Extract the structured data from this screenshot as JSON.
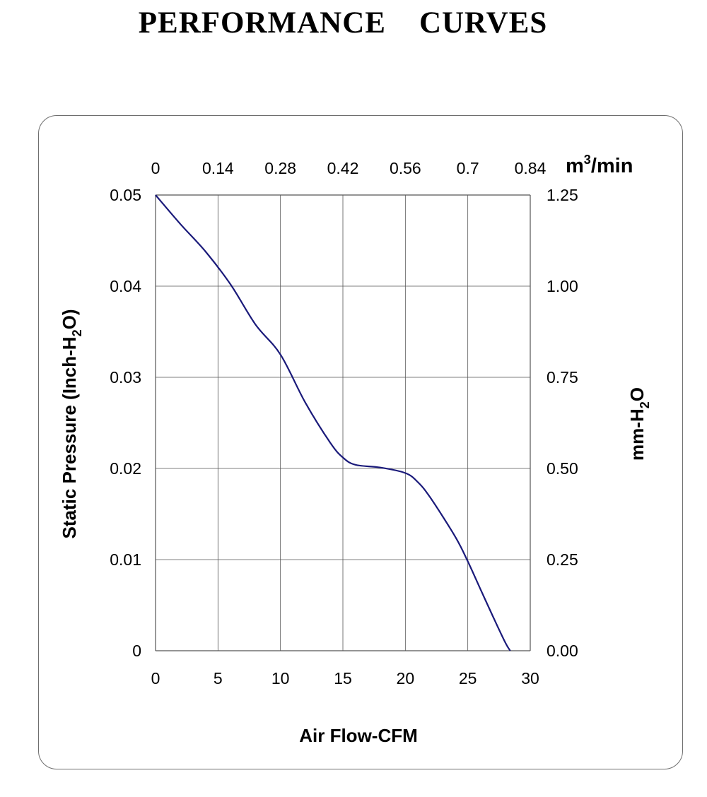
{
  "page": {
    "title": "PERFORMANCE    CURVES"
  },
  "chart_data": {
    "type": "line",
    "x_axis": {
      "label": "Air Flow-CFM",
      "range": [
        0,
        30
      ],
      "ticks": [
        "0",
        "5",
        "10",
        "15",
        "20",
        "25",
        "30"
      ]
    },
    "x_axis_top": {
      "unit_base": "m",
      "unit_sup": "3",
      "unit_rest": "/min",
      "ticks": [
        "0",
        "0.14",
        "0.28",
        "0.42",
        "0.56",
        "0.7",
        "0.84"
      ]
    },
    "y_axis": {
      "label_main": "Static Pressure (Inch-H",
      "label_sub": "2",
      "label_end": "O)",
      "range": [
        0,
        0.05
      ],
      "ticks": [
        "0",
        "0.01",
        "0.02",
        "0.03",
        "0.04",
        "0.05"
      ]
    },
    "y_axis_right": {
      "label_main": "mm-H",
      "label_sub": "2",
      "label_end": "O",
      "ticks": [
        "0.00",
        "0.25",
        "0.50",
        "0.75",
        "1.00",
        "1.25"
      ]
    },
    "grid": true,
    "series": [
      {
        "color": "#1a1a7a",
        "points": [
          [
            0,
            0.05
          ],
          [
            2,
            0.0468
          ],
          [
            4,
            0.0438
          ],
          [
            6,
            0.0402
          ],
          [
            8,
            0.0358
          ],
          [
            10,
            0.0325
          ],
          [
            12,
            0.0272
          ],
          [
            14,
            0.0228
          ],
          [
            15,
            0.0212
          ],
          [
            16,
            0.0204
          ],
          [
            18,
            0.0201
          ],
          [
            20,
            0.0195
          ],
          [
            21,
            0.0185
          ],
          [
            22,
            0.0168
          ],
          [
            24,
            0.0125
          ],
          [
            25,
            0.0098
          ],
          [
            26,
            0.0068
          ],
          [
            27,
            0.0038
          ],
          [
            28,
            0.0009
          ],
          [
            28.4,
            0.0
          ]
        ]
      }
    ]
  }
}
